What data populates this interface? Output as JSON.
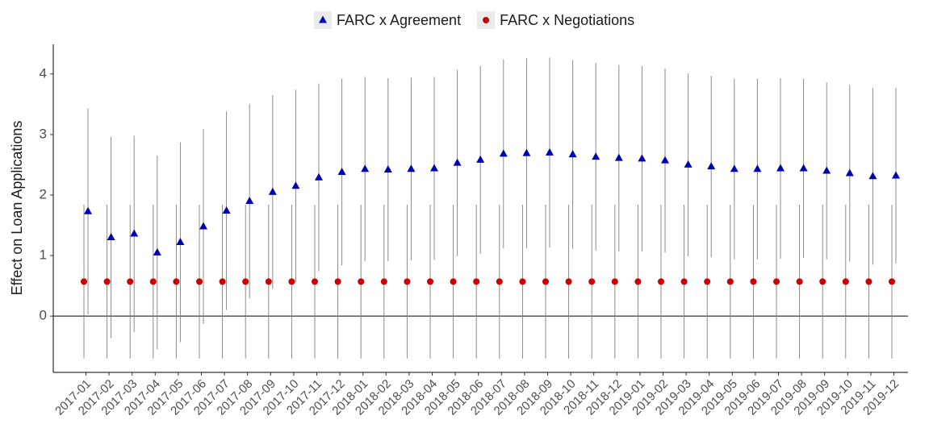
{
  "chart_data": {
    "type": "errorbar",
    "y_label": "Effect on Loan Applications",
    "categories": [
      "2017-01",
      "2017-02",
      "2017-03",
      "2017-04",
      "2017-05",
      "2017-06",
      "2017-07",
      "2017-08",
      "2017-09",
      "2017-10",
      "2017-11",
      "2017-12",
      "2018-01",
      "2018-02",
      "2018-03",
      "2018-04",
      "2018-05",
      "2018-06",
      "2018-07",
      "2018-08",
      "2018-09",
      "2018-10",
      "2018-11",
      "2018-12",
      "2019-01",
      "2019-02",
      "2019-03",
      "2019-04",
      "2019-05",
      "2019-06",
      "2019-07",
      "2019-08",
      "2019-09",
      "2019-10",
      "2019-11",
      "2019-12"
    ],
    "series": [
      {
        "name": "FARC x Agreement",
        "color": "#0000b3",
        "marker": "triangle",
        "values": [
          1.73,
          1.3,
          1.36,
          1.05,
          1.22,
          1.48,
          1.74,
          1.9,
          2.05,
          2.15,
          2.29,
          2.38,
          2.43,
          2.42,
          2.43,
          2.44,
          2.53,
          2.58,
          2.68,
          2.69,
          2.7,
          2.67,
          2.63,
          2.61,
          2.6,
          2.57,
          2.5,
          2.47,
          2.43,
          2.43,
          2.44,
          2.44,
          2.4,
          2.36,
          2.31,
          2.32
        ],
        "lower": [
          0.03,
          -0.36,
          -0.26,
          -0.55,
          -0.43,
          -0.13,
          0.1,
          0.29,
          0.45,
          0.56,
          0.74,
          0.84,
          0.91,
          0.91,
          0.92,
          0.93,
          0.99,
          1.03,
          1.12,
          1.12,
          1.13,
          1.11,
          1.08,
          1.07,
          1.07,
          1.05,
          0.99,
          0.97,
          0.94,
          0.94,
          0.95,
          0.96,
          0.94,
          0.9,
          0.85,
          0.87
        ],
        "upper": [
          3.43,
          2.96,
          2.98,
          2.65,
          2.87,
          3.09,
          3.38,
          3.51,
          3.65,
          3.74,
          3.84,
          3.92,
          3.95,
          3.93,
          3.94,
          3.95,
          4.07,
          4.13,
          4.24,
          4.26,
          4.27,
          4.23,
          4.18,
          4.15,
          4.13,
          4.09,
          4.01,
          3.97,
          3.92,
          3.92,
          3.93,
          3.92,
          3.86,
          3.82,
          3.77,
          3.77
        ]
      },
      {
        "name": "FARC x Negotiations",
        "color": "#cc0000",
        "marker": "circle",
        "values": [
          0.57,
          0.57,
          0.57,
          0.57,
          0.57,
          0.57,
          0.57,
          0.57,
          0.57,
          0.57,
          0.57,
          0.57,
          0.57,
          0.57,
          0.57,
          0.57,
          0.57,
          0.57,
          0.57,
          0.57,
          0.57,
          0.57,
          0.57,
          0.57,
          0.57,
          0.57,
          0.57,
          0.57,
          0.57,
          0.57,
          0.57,
          0.57,
          0.57,
          0.57,
          0.57,
          0.57
        ],
        "lower": [
          -0.7,
          -0.7,
          -0.7,
          -0.7,
          -0.7,
          -0.7,
          -0.7,
          -0.7,
          -0.7,
          -0.7,
          -0.7,
          -0.7,
          -0.7,
          -0.7,
          -0.7,
          -0.7,
          -0.7,
          -0.7,
          -0.7,
          -0.7,
          -0.7,
          -0.7,
          -0.7,
          -0.7,
          -0.7,
          -0.7,
          -0.7,
          -0.7,
          -0.7,
          -0.7,
          -0.7,
          -0.7,
          -0.7,
          -0.7,
          -0.7,
          -0.7
        ],
        "upper": [
          1.84,
          1.84,
          1.84,
          1.84,
          1.84,
          1.84,
          1.84,
          1.84,
          1.84,
          1.84,
          1.84,
          1.84,
          1.84,
          1.84,
          1.84,
          1.84,
          1.84,
          1.84,
          1.84,
          1.84,
          1.84,
          1.84,
          1.84,
          1.84,
          1.84,
          1.84,
          1.84,
          1.84,
          1.84,
          1.84,
          1.84,
          1.84,
          1.84,
          1.84,
          1.84,
          1.84
        ]
      }
    ],
    "ylim": [
      -0.93,
      4.49
    ],
    "yticks": [
      0,
      1,
      2,
      3,
      4
    ],
    "reference_line": 0,
    "legend": "top"
  }
}
